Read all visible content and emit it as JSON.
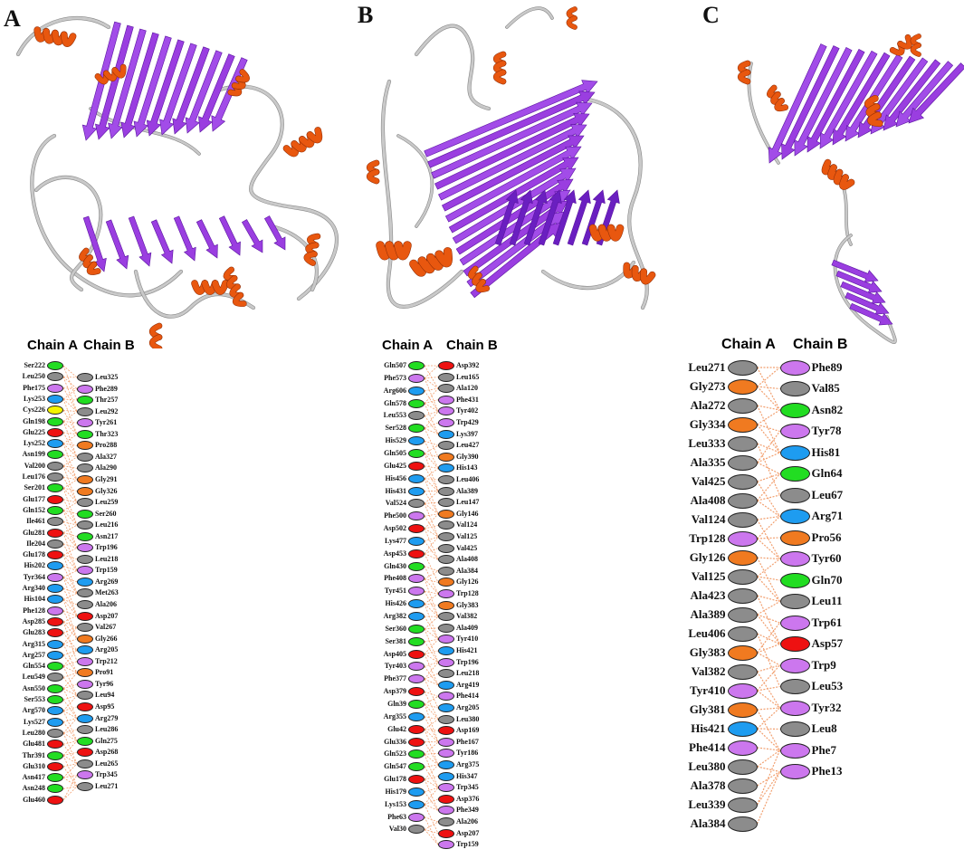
{
  "panels": [
    {
      "letter": "A",
      "chain_a_title": "Chain A",
      "chain_b_title": "Chain B",
      "chain_a": [
        [
          "Ser222",
          "green"
        ],
        [
          "Leu250",
          "grey"
        ],
        [
          "Phe175",
          "violet"
        ],
        [
          "Lys253",
          "blue"
        ],
        [
          "Cys226",
          "yellow"
        ],
        [
          "Gln198",
          "green"
        ],
        [
          "Glu225",
          "red"
        ],
        [
          "Lys252",
          "blue"
        ],
        [
          "Asn199",
          "green"
        ],
        [
          "Val200",
          "grey"
        ],
        [
          "Leu176",
          "grey"
        ],
        [
          "Ser201",
          "green"
        ],
        [
          "Glu177",
          "red"
        ],
        [
          "Gln152",
          "green"
        ],
        [
          "Ile461",
          "grey"
        ],
        [
          "Glu281",
          "red"
        ],
        [
          "Ile204",
          "grey"
        ],
        [
          "Glu178",
          "red"
        ],
        [
          "His202",
          "blue"
        ],
        [
          "Tyr364",
          "violet"
        ],
        [
          "Arg340",
          "blue"
        ],
        [
          "His104",
          "blue"
        ],
        [
          "Phe128",
          "violet"
        ],
        [
          "Asp285",
          "red"
        ],
        [
          "Glu283",
          "red"
        ],
        [
          "Arg315",
          "blue"
        ],
        [
          "Arg257",
          "blue"
        ],
        [
          "Gln554",
          "green"
        ],
        [
          "Leu549",
          "grey"
        ],
        [
          "Asn550",
          "green"
        ],
        [
          "Ser553",
          "green"
        ],
        [
          "Arg570",
          "blue"
        ],
        [
          "Lys527",
          "blue"
        ],
        [
          "Leu280",
          "grey"
        ],
        [
          "Glu481",
          "red"
        ],
        [
          "Thr391",
          "green"
        ],
        [
          "Glu310",
          "red"
        ],
        [
          "Asn417",
          "green"
        ],
        [
          "Asn248",
          "green"
        ],
        [
          "Glu460",
          "red"
        ]
      ],
      "chain_b": [
        [
          "Leu325",
          "grey"
        ],
        [
          "Phe289",
          "violet"
        ],
        [
          "Thr257",
          "green"
        ],
        [
          "Leu292",
          "grey"
        ],
        [
          "Tyr261",
          "violet"
        ],
        [
          "Thr323",
          "green"
        ],
        [
          "Pro288",
          "orange"
        ],
        [
          "Ala327",
          "grey"
        ],
        [
          "Ala290",
          "grey"
        ],
        [
          "Gly291",
          "orange"
        ],
        [
          "Gly326",
          "orange"
        ],
        [
          "Leu259",
          "grey"
        ],
        [
          "Ser260",
          "green"
        ],
        [
          "Leu216",
          "grey"
        ],
        [
          "Asn217",
          "green"
        ],
        [
          "Trp196",
          "violet"
        ],
        [
          "Leu218",
          "grey"
        ],
        [
          "Trp159",
          "violet"
        ],
        [
          "Arg269",
          "blue"
        ],
        [
          "Met263",
          "grey"
        ],
        [
          "Ala206",
          "grey"
        ],
        [
          "Asp207",
          "red"
        ],
        [
          "Val267",
          "grey"
        ],
        [
          "Gly266",
          "orange"
        ],
        [
          "Arg205",
          "blue"
        ],
        [
          "Trp212",
          "violet"
        ],
        [
          "Pro91",
          "orange"
        ],
        [
          "Tyr96",
          "violet"
        ],
        [
          "Leu94",
          "grey"
        ],
        [
          "Asp95",
          "red"
        ],
        [
          "Arg279",
          "blue"
        ],
        [
          "Leu286",
          "grey"
        ],
        [
          "Gln275",
          "green"
        ],
        [
          "Asp268",
          "red"
        ],
        [
          "Leu265",
          "grey"
        ],
        [
          "Trp345",
          "violet"
        ],
        [
          "Leu271",
          "grey"
        ]
      ]
    },
    {
      "letter": "B",
      "chain_a_title": "Chain A",
      "chain_b_title": "Chain B",
      "chain_a": [
        [
          "Gln507",
          "green"
        ],
        [
          "Phe573",
          "violet"
        ],
        [
          "Arg606",
          "blue"
        ],
        [
          "Gln578",
          "green"
        ],
        [
          "Leu553",
          "grey"
        ],
        [
          "Ser528",
          "green"
        ],
        [
          "His529",
          "blue"
        ],
        [
          "Gln505",
          "green"
        ],
        [
          "Glu425",
          "red"
        ],
        [
          "His456",
          "blue"
        ],
        [
          "His431",
          "blue"
        ],
        [
          "Val524",
          "grey"
        ],
        [
          "Phe500",
          "violet"
        ],
        [
          "Asp502",
          "red"
        ],
        [
          "Lys477",
          "blue"
        ],
        [
          "Asp453",
          "red"
        ],
        [
          "Gln430",
          "green"
        ],
        [
          "Phe408",
          "violet"
        ],
        [
          "Tyr451",
          "violet"
        ],
        [
          "His426",
          "blue"
        ],
        [
          "Arg382",
          "blue"
        ],
        [
          "Ser360",
          "green"
        ],
        [
          "Ser381",
          "green"
        ],
        [
          "Asp405",
          "red"
        ],
        [
          "Tyr403",
          "violet"
        ],
        [
          "Phe377",
          "violet"
        ],
        [
          "Asp379",
          "red"
        ],
        [
          "Gln39",
          "green"
        ],
        [
          "Arg355",
          "blue"
        ],
        [
          "Glu42",
          "red"
        ],
        [
          "Glu336",
          "red"
        ],
        [
          "Gln523",
          "green"
        ],
        [
          "Gln547",
          "green"
        ],
        [
          "Glu178",
          "red"
        ],
        [
          "His179",
          "blue"
        ],
        [
          "Lys153",
          "blue"
        ],
        [
          "Phe63",
          "violet"
        ],
        [
          "Val30",
          "grey"
        ]
      ],
      "chain_b": [
        [
          "Asp392",
          "red"
        ],
        [
          "Leu165",
          "grey"
        ],
        [
          "Ala120",
          "grey"
        ],
        [
          "Phe431",
          "violet"
        ],
        [
          "Tyr402",
          "violet"
        ],
        [
          "Trp429",
          "violet"
        ],
        [
          "Lys397",
          "blue"
        ],
        [
          "Leu427",
          "grey"
        ],
        [
          "Gly390",
          "orange"
        ],
        [
          "His143",
          "blue"
        ],
        [
          "Leu406",
          "grey"
        ],
        [
          "Ala389",
          "grey"
        ],
        [
          "Leu147",
          "grey"
        ],
        [
          "Gly146",
          "orange"
        ],
        [
          "Val124",
          "grey"
        ],
        [
          "Val125",
          "grey"
        ],
        [
          "Val425",
          "grey"
        ],
        [
          "Ala408",
          "grey"
        ],
        [
          "Ala384",
          "grey"
        ],
        [
          "Gly126",
          "orange"
        ],
        [
          "Trp128",
          "violet"
        ],
        [
          "Gly383",
          "orange"
        ],
        [
          "Val382",
          "grey"
        ],
        [
          "Ala409",
          "grey"
        ],
        [
          "Tyr410",
          "violet"
        ],
        [
          "His421",
          "blue"
        ],
        [
          "Trp196",
          "violet"
        ],
        [
          "Leu218",
          "grey"
        ],
        [
          "Arg419",
          "blue"
        ],
        [
          "Phe414",
          "violet"
        ],
        [
          "Arg205",
          "blue"
        ],
        [
          "Leu380",
          "grey"
        ],
        [
          "Asp169",
          "red"
        ],
        [
          "Phe167",
          "violet"
        ],
        [
          "Tyr186",
          "violet"
        ],
        [
          "Arg375",
          "blue"
        ],
        [
          "His347",
          "blue"
        ],
        [
          "Trp345",
          "violet"
        ],
        [
          "Asp376",
          "red"
        ],
        [
          "Phe349",
          "violet"
        ],
        [
          "Ala206",
          "grey"
        ],
        [
          "Asp207",
          "red"
        ],
        [
          "Trp159",
          "violet"
        ]
      ]
    },
    {
      "letter": "C",
      "chain_a_title": "Chain A",
      "chain_b_title": "Chain B",
      "chain_a": [
        [
          "Leu271",
          "grey"
        ],
        [
          "Gly273",
          "orange"
        ],
        [
          "Ala272",
          "grey"
        ],
        [
          "Gly334",
          "orange"
        ],
        [
          "Leu333",
          "grey"
        ],
        [
          "Ala335",
          "grey"
        ],
        [
          "Val425",
          "grey"
        ],
        [
          "Ala408",
          "grey"
        ],
        [
          "Val124",
          "grey"
        ],
        [
          "Trp128",
          "violet"
        ],
        [
          "Gly126",
          "orange"
        ],
        [
          "Val125",
          "grey"
        ],
        [
          "Ala423",
          "grey"
        ],
        [
          "Ala389",
          "grey"
        ],
        [
          "Leu406",
          "grey"
        ],
        [
          "Gly383",
          "orange"
        ],
        [
          "Val382",
          "grey"
        ],
        [
          "Tyr410",
          "violet"
        ],
        [
          "Gly381",
          "orange"
        ],
        [
          "His421",
          "blue"
        ],
        [
          "Phe414",
          "violet"
        ],
        [
          "Leu380",
          "grey"
        ],
        [
          "Ala378",
          "grey"
        ],
        [
          "Leu339",
          "grey"
        ],
        [
          "Ala384",
          "grey"
        ]
      ],
      "chain_b": [
        [
          "Phe89",
          "violet"
        ],
        [
          "Val85",
          "grey"
        ],
        [
          "Asn82",
          "green"
        ],
        [
          "Tyr78",
          "violet"
        ],
        [
          "His81",
          "blue"
        ],
        [
          "Gln64",
          "green"
        ],
        [
          "Leu67",
          "grey"
        ],
        [
          "Arg71",
          "blue"
        ],
        [
          "Pro56",
          "orange"
        ],
        [
          "Tyr60",
          "violet"
        ],
        [
          "Gln70",
          "green"
        ],
        [
          "Leu11",
          "grey"
        ],
        [
          "Trp61",
          "violet"
        ],
        [
          "Asp57",
          "red"
        ],
        [
          "Trp9",
          "violet"
        ],
        [
          "Leu53",
          "grey"
        ],
        [
          "Tyr32",
          "violet"
        ],
        [
          "Leu8",
          "grey"
        ],
        [
          "Phe7",
          "violet"
        ],
        [
          "Phe13",
          "violet"
        ]
      ]
    }
  ],
  "colors": {
    "green": "#22dd22",
    "grey": "#8c8c8c",
    "violet": "#cc77ee",
    "blue": "#1e9cf0",
    "red": "#ee1111",
    "orange": "#f07a20",
    "yellow": "#f4f400",
    "chain_a": "#bb55ee",
    "chain_b": "#ee1111",
    "link": "#f2a070",
    "strand": "#9a3ee0",
    "strand_dark": "#5a14a0",
    "helix": "#e8570f",
    "helix_dark": "#8a2a05",
    "coil": "#c9c9c9"
  }
}
